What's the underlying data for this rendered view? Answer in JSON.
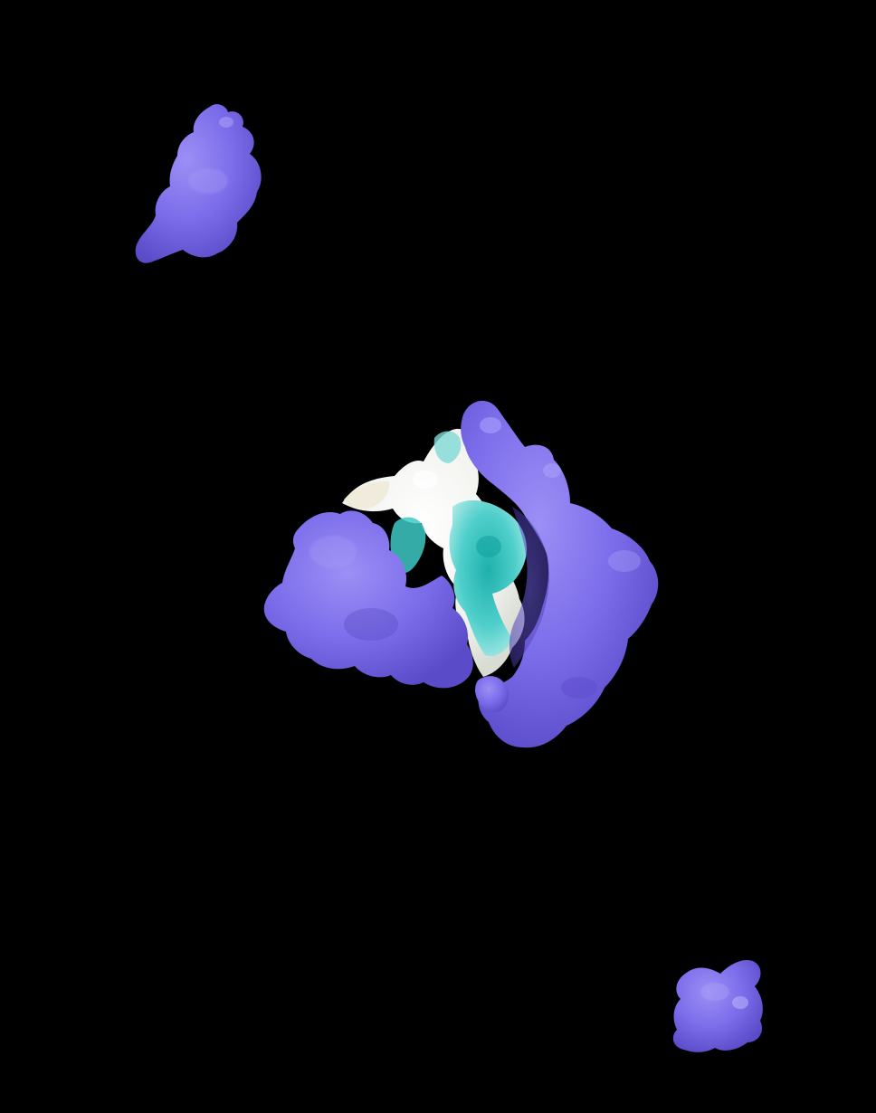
{
  "viewer": {
    "background_color": "#000000"
  },
  "colors": {
    "protein_surface": "#7B6CEA",
    "protein_highlight": "#B4A9FF",
    "protein_shadow": "#4A3DB0",
    "ligand_white": "#F4F6F2",
    "ligand_cream": "#EFE9D6",
    "ligand_cyan": "#3EC9C6",
    "ligand_teal": "#22B5B2"
  },
  "scene": {
    "surfaces": [
      {
        "name": "protein-fragment-top-left",
        "color": "protein_surface"
      },
      {
        "name": "protein-complex-center",
        "color": "protein_surface"
      },
      {
        "name": "ligand-surface-hydrophobicity",
        "color": "ligand_cyan"
      },
      {
        "name": "protein-fragment-bottom-right",
        "color": "protein_surface"
      }
    ]
  }
}
